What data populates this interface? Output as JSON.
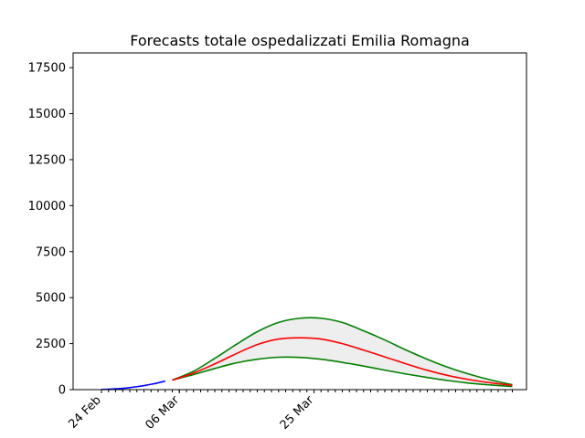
{
  "chart_data": {
    "type": "line",
    "title": "Forecasts totale ospedalizzati Emilia Romagna",
    "xlabel": "",
    "ylabel": "",
    "ylim": [
      0,
      18300
    ],
    "xlim": [
      "2020-02-20",
      "2020-04-24"
    ],
    "yticks": [
      0,
      2500,
      5000,
      7500,
      10000,
      12500,
      15000,
      17500
    ],
    "ytick_labels": [
      "0",
      "2500",
      "5000",
      "7500",
      "10000",
      "12500",
      "15000",
      "17500"
    ],
    "xtick_labels": [
      {
        "date": "2020-02-24",
        "label": "24 Feb"
      },
      {
        "date": "2020-03-06",
        "label": "06 Mar"
      },
      {
        "date": "2020-03-25",
        "label": "25 Mar"
      }
    ],
    "minor_tick_dates": {
      "start": "2020-02-24",
      "end": "2020-04-22"
    },
    "grid": false,
    "legend": "none",
    "series": [
      {
        "role": "observed",
        "color": "#0000ff",
        "x": [
          "2020-02-24",
          "2020-02-25",
          "2020-02-26",
          "2020-02-27",
          "2020-02-28",
          "2020-02-29",
          "2020-03-01",
          "2020-03-02",
          "2020-03-03",
          "2020-03-04"
        ],
        "y": [
          10,
          25,
          45,
          70,
          110,
          160,
          220,
          290,
          370,
          460
        ]
      },
      {
        "role": "forecast-central",
        "color": "#ff0000",
        "x": [
          "2020-03-05",
          "2020-03-08",
          "2020-03-11",
          "2020-03-14",
          "2020-03-17",
          "2020-03-20",
          "2020-03-23",
          "2020-03-26",
          "2020-03-29",
          "2020-04-01",
          "2020-04-04",
          "2020-04-07",
          "2020-04-10",
          "2020-04-13",
          "2020-04-16",
          "2020-04-19",
          "2020-04-22"
        ],
        "y": [
          520,
          900,
          1400,
          1950,
          2450,
          2750,
          2820,
          2750,
          2500,
          2150,
          1780,
          1400,
          1050,
          760,
          540,
          370,
          240
        ]
      },
      {
        "role": "forecast-upper",
        "color": "#008000",
        "x": [
          "2020-03-05",
          "2020-03-08",
          "2020-03-11",
          "2020-03-14",
          "2020-03-17",
          "2020-03-20",
          "2020-03-23",
          "2020-03-26",
          "2020-03-29",
          "2020-04-01",
          "2020-04-04",
          "2020-04-07",
          "2020-04-10",
          "2020-04-13",
          "2020-04-16",
          "2020-04-19",
          "2020-04-22"
        ],
        "y": [
          520,
          1000,
          1700,
          2450,
          3150,
          3650,
          3880,
          3880,
          3650,
          3200,
          2700,
          2150,
          1650,
          1200,
          830,
          520,
          270
        ]
      },
      {
        "role": "forecast-lower",
        "color": "#008000",
        "x": [
          "2020-03-05",
          "2020-03-08",
          "2020-03-11",
          "2020-03-14",
          "2020-03-17",
          "2020-03-20",
          "2020-03-23",
          "2020-03-26",
          "2020-03-29",
          "2020-04-01",
          "2020-04-04",
          "2020-04-07",
          "2020-04-10",
          "2020-04-13",
          "2020-04-16",
          "2020-04-19",
          "2020-04-22"
        ],
        "y": [
          520,
          820,
          1150,
          1450,
          1650,
          1760,
          1750,
          1650,
          1480,
          1280,
          1060,
          850,
          660,
          490,
          350,
          250,
          170
        ]
      }
    ],
    "band": {
      "between": [
        "forecast-lower",
        "forecast-upper"
      ],
      "color": "#eeeeee"
    }
  }
}
